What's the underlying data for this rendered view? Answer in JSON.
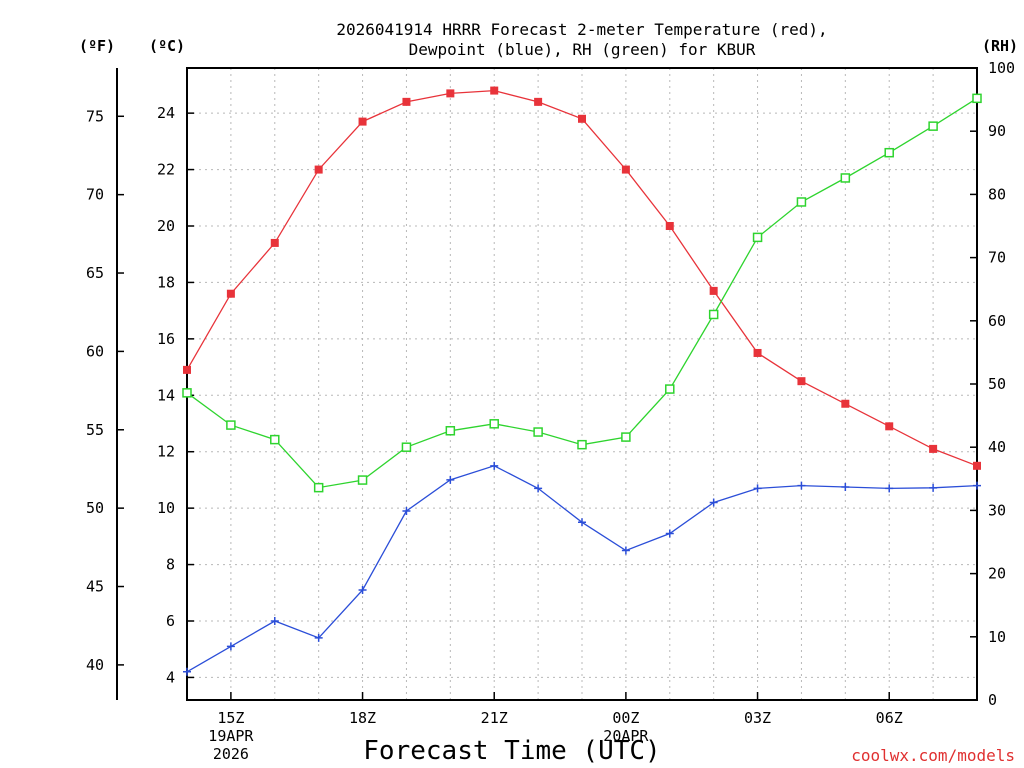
{
  "chart_data": {
    "type": "line",
    "title_line1": "2026041914 HRRR Forecast 2-meter Temperature (red),",
    "title_line2": "Dewpoint (blue), RH (green) for KBUR",
    "xlabel": "Forecast Time (UTC)",
    "credit": "coolwx.com/models",
    "unit_labels": {
      "fahrenheit": "(ºF)",
      "celsius": "(ºC)",
      "rh": "(RH)"
    },
    "x_ticks": [
      {
        "hour": 1,
        "label": "15Z",
        "sub1": "19APR",
        "sub2": "2026"
      },
      {
        "hour": 4,
        "label": "18Z",
        "sub1": "",
        "sub2": ""
      },
      {
        "hour": 7,
        "label": "21Z",
        "sub1": "",
        "sub2": ""
      },
      {
        "hour": 10,
        "label": "00Z",
        "sub1": "20APR",
        "sub2": ""
      },
      {
        "hour": 13,
        "label": "03Z",
        "sub1": "",
        "sub2": ""
      },
      {
        "hour": 16,
        "label": "06Z",
        "sub1": "",
        "sub2": ""
      }
    ],
    "x_range": [
      0,
      18
    ],
    "celsius_axis": {
      "range": [
        3.2,
        25.6
      ],
      "ticks": [
        4,
        6,
        8,
        10,
        12,
        14,
        16,
        18,
        20,
        22,
        24
      ]
    },
    "fahrenheit_axis": {
      "ticks": [
        40,
        45,
        50,
        55,
        60,
        65,
        70,
        75
      ]
    },
    "rh_axis": {
      "range": [
        0,
        100
      ],
      "ticks": [
        0,
        10,
        20,
        30,
        40,
        50,
        60,
        70,
        80,
        90,
        100
      ]
    },
    "series": [
      {
        "name": "Temperature",
        "axis": "celsius",
        "color": "#e8333a",
        "marker": "filled-square",
        "x": [
          0,
          1,
          2,
          3,
          4,
          5,
          6,
          7,
          8,
          9,
          10,
          11,
          12,
          13,
          14,
          15,
          16,
          17,
          18
        ],
        "values": [
          14.9,
          17.6,
          19.4,
          22.0,
          23.7,
          24.4,
          24.7,
          24.8,
          24.4,
          23.8,
          22.0,
          20.0,
          17.7,
          15.5,
          14.5,
          13.7,
          12.9,
          12.1,
          11.5
        ]
      },
      {
        "name": "Dewpoint",
        "axis": "celsius",
        "color": "#2b4ed8",
        "marker": "plus",
        "x": [
          0,
          1,
          2,
          3,
          4,
          5,
          6,
          7,
          8,
          9,
          10,
          11,
          12,
          13,
          14,
          15,
          16,
          17,
          18
        ],
        "values": [
          4.2,
          5.1,
          6.0,
          5.4,
          7.1,
          9.9,
          11.0,
          11.5,
          10.7,
          9.5,
          8.5,
          9.1,
          10.2,
          10.7,
          10.8,
          10.75,
          10.7,
          10.72,
          10.8
        ]
      },
      {
        "name": "RH",
        "axis": "rh",
        "color": "#2ed42e",
        "marker": "open-square",
        "x": [
          0,
          1,
          2,
          3,
          4,
          5,
          6,
          7,
          8,
          9,
          10,
          11,
          12,
          13,
          14,
          15,
          16,
          17,
          18
        ],
        "values": [
          48.6,
          43.5,
          41.2,
          33.6,
          34.8,
          40.0,
          42.6,
          43.7,
          42.4,
          40.4,
          41.6,
          49.2,
          61.0,
          73.2,
          78.8,
          82.6,
          86.6,
          90.8,
          95.2
        ]
      }
    ]
  }
}
